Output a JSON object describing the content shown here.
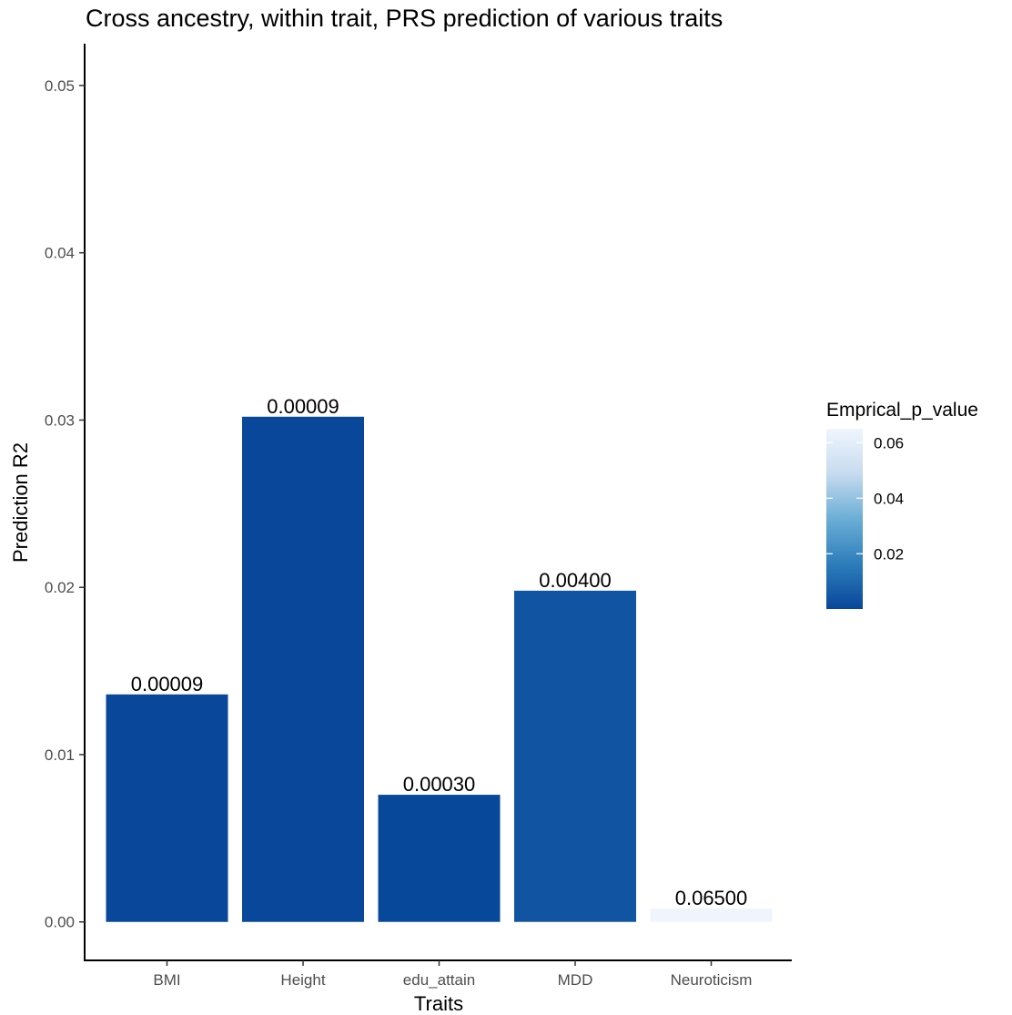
{
  "chart_data": {
    "type": "bar",
    "title": "Cross ancestry, within trait, PRS prediction of various traits",
    "xlabel": "Traits",
    "ylabel": "Prediction R2",
    "categories": [
      "BMI",
      "Height",
      "edu_attain",
      "MDD",
      "Neuroticism"
    ],
    "values": [
      0.0136,
      0.0302,
      0.0076,
      0.0198,
      0.0008
    ],
    "p_values": [
      9e-05,
      9e-05,
      0.0003,
      0.004,
      0.065
    ],
    "data_labels": [
      "0.00009",
      "0.00009",
      "0.00030",
      "0.00400",
      "0.06500"
    ],
    "ylim": [
      -0.0023,
      0.0525
    ],
    "yticks": [
      0,
      0.01,
      0.02,
      0.03,
      0.04,
      0.05
    ],
    "ytick_labels": [
      "0.00",
      "0.01",
      "0.02",
      "0.03",
      "0.04",
      "0.05"
    ],
    "grid": false,
    "legend": {
      "title": "Emprical_p_value",
      "placement": "right",
      "range": [
        9e-05,
        0.065
      ],
      "ticks": [
        0.02,
        0.04,
        0.06
      ],
      "tick_labels": [
        "0.02",
        "0.04",
        "0.06"
      ],
      "colors": [
        "#08479A",
        "#2D7DBB",
        "#6BAED6",
        "#C6DBEF",
        "#F0F5FD"
      ]
    }
  }
}
